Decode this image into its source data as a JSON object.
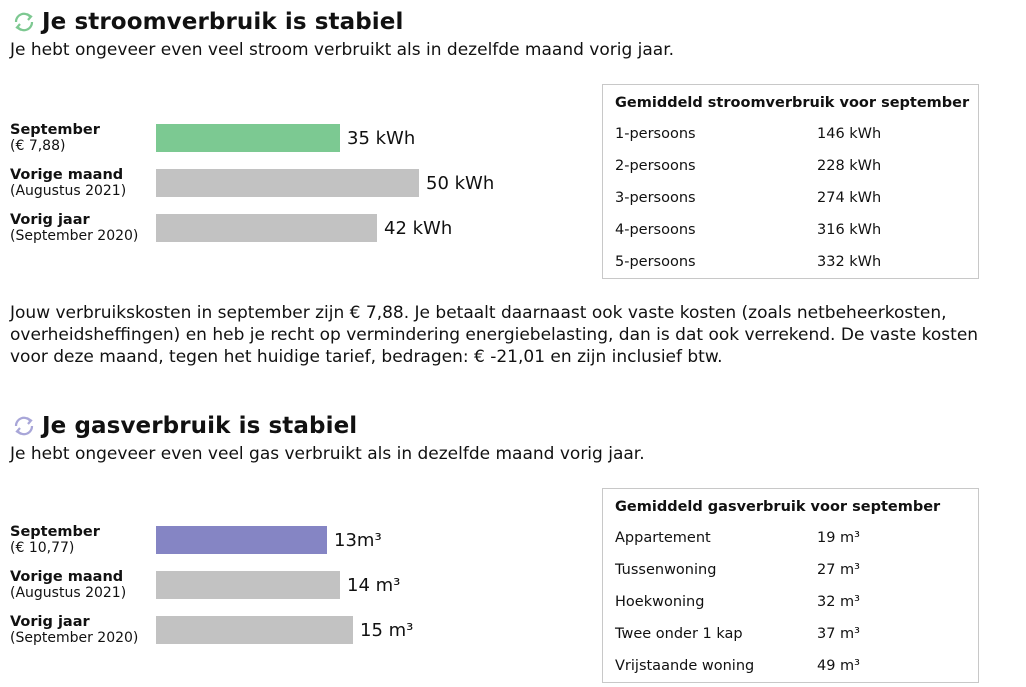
{
  "electricity": {
    "title": "Je stroomverbruik is stabiel",
    "subtitle": "Je hebt ongeveer even veel stroom verbruikt als in dezelfde maand vorig jaar.",
    "accent": "#7dc891",
    "icon": "refresh-icon",
    "rows": [
      {
        "name": "September",
        "sub": "(€ 7,88)",
        "value": 35,
        "label": "35 kWh",
        "color": "#7cc992"
      },
      {
        "name": "Vorige maand",
        "sub": "(Augustus 2021)",
        "value": 50,
        "label": "50 kWh",
        "color": "#c2c2c2"
      },
      {
        "name": "Vorig jaar",
        "sub": "(September 2020)",
        "value": 42,
        "label": "42 kWh",
        "color": "#c2c2c2"
      }
    ],
    "avg_table": {
      "header": "Gemiddeld stroomverbruik voor september",
      "rows": [
        {
          "label": "1-persoons",
          "value": "146 kWh"
        },
        {
          "label": "2-persoons",
          "value": "228 kWh"
        },
        {
          "label": "3-persoons",
          "value": "274 kWh"
        },
        {
          "label": "4-persoons",
          "value": "316 kWh"
        },
        {
          "label": "5-persoons",
          "value": "332 kWh"
        }
      ]
    },
    "cost_text": "Jouw verbruikskosten in september zijn € 7,88. Je betaalt daarnaast ook vaste kosten (zoals netbeheerkosten, overheidsheffingen) en heb je recht op vermindering energiebelasting, dan is dat ook verrekend. De vaste kosten voor deze maand, tegen het huidige tarief, bedragen: € -21,01 en zijn inclusief btw."
  },
  "gas": {
    "title": "Je gasverbruik is stabiel",
    "subtitle": "Je hebt ongeveer even veel gas verbruikt als in dezelfde maand vorig jaar.",
    "accent": "#a8a6d8",
    "icon": "refresh-icon",
    "rows": [
      {
        "name": "September",
        "sub": "(€ 10,77)",
        "value": 13,
        "label": "13m³",
        "color": "#8585c4"
      },
      {
        "name": "Vorige maand",
        "sub": "(Augustus 2021)",
        "value": 14,
        "label": "14 m³",
        "color": "#c2c2c2"
      },
      {
        "name": "Vorig jaar",
        "sub": "(September 2020)",
        "value": 15,
        "label": "15 m³",
        "color": "#c2c2c2"
      }
    ],
    "avg_table": {
      "header": "Gemiddeld gasverbruik voor september",
      "rows": [
        {
          "label": "Appartement",
          "value": "19 m³"
        },
        {
          "label": "Tussenwoning",
          "value": "27 m³"
        },
        {
          "label": "Hoekwoning",
          "value": "32 m³"
        },
        {
          "label": "Twee onder 1 kap",
          "value": "37 m³"
        },
        {
          "label": "Vrijstaande woning",
          "value": "49 m³"
        }
      ]
    }
  }
}
